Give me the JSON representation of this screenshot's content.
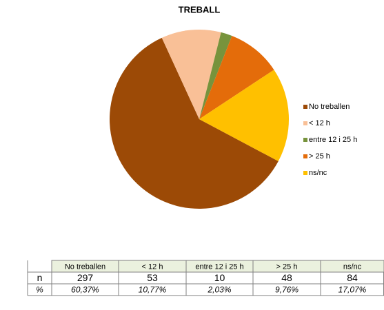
{
  "chart_data": {
    "type": "pie",
    "title": "TREBALL",
    "categories": [
      "No treballen",
      "< 12 h",
      "entre 12 i 25 h",
      "> 25 h",
      "ns/nc"
    ],
    "values": [
      297,
      53,
      10,
      48,
      84
    ],
    "colors": [
      "#9c4a06",
      "#f9c097",
      "#77933c",
      "#e46c0a",
      "#ffc000"
    ],
    "legend": "right"
  },
  "table": {
    "row_labels": [
      "n",
      "%"
    ],
    "percentages": [
      "60,37%",
      "10,77%",
      "2,03%",
      "9,76%",
      "17,07%"
    ]
  }
}
